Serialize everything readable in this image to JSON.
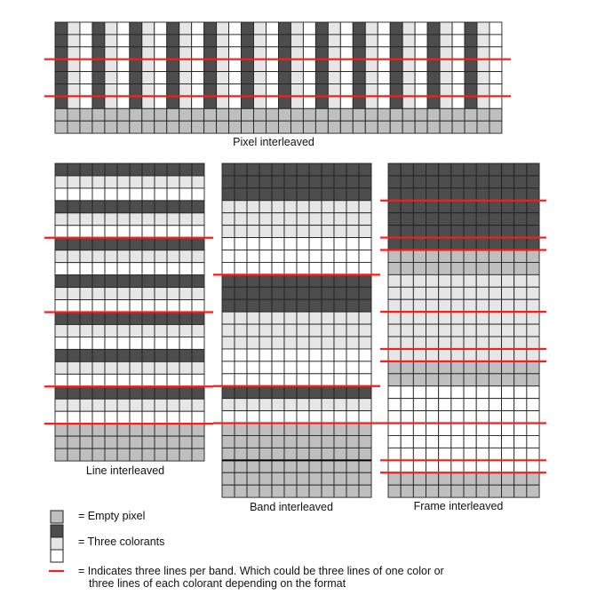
{
  "colors": {
    "dark": "#4d4d4d",
    "light": "#e6e6e6",
    "white": "#ffffff",
    "empty": "#bfbfbf",
    "red": "#ff1a1a",
    "grid": "#222222"
  },
  "diagrams": [
    {
      "id": "pixel",
      "caption": "Pixel interleaved",
      "cols": 36,
      "mode": "columns",
      "col_pattern": [
        "dark",
        "light",
        "white"
      ],
      "data_rows": 7,
      "empty_rows": 2,
      "red_after_rows": [
        3,
        6
      ]
    },
    {
      "id": "line",
      "caption": "Line interleaved",
      "cols": 12,
      "mode": "rows",
      "rows": [
        "dark",
        "light",
        "white",
        "dark",
        "light",
        "white",
        "dark",
        "light",
        "white",
        "dark",
        "light",
        "white",
        "dark",
        "light",
        "white",
        "dark",
        "light",
        "white",
        "dark",
        "light",
        "white",
        "empty",
        "empty",
        "empty"
      ],
      "red_after_rows": [
        6,
        12,
        18,
        21
      ]
    },
    {
      "id": "band",
      "caption": "Band interleaved",
      "cols": 12,
      "mode": "rows",
      "rows": [
        "dark",
        "dark",
        "dark",
        "light",
        "light",
        "light",
        "white",
        "white",
        "white",
        "dark",
        "dark",
        "dark",
        "light",
        "light",
        "light",
        "white",
        "white",
        "white",
        "dark",
        "light",
        "white",
        "empty",
        "empty",
        "empty",
        "empty",
        "empty",
        "empty"
      ],
      "red_after_rows": [
        9,
        18,
        21
      ],
      "heavy_after_rows": [
        24
      ]
    },
    {
      "id": "frame",
      "caption": "Frame interleaved",
      "cols": 12,
      "mode": "rows",
      "rows": [
        "dark",
        "dark",
        "dark",
        "dark",
        "dark",
        "dark",
        "dark",
        "empty",
        "empty",
        "light",
        "light",
        "light",
        "light",
        "light",
        "light",
        "light",
        "empty",
        "empty",
        "white",
        "white",
        "white",
        "white",
        "white",
        "white",
        "white",
        "empty",
        "empty"
      ],
      "red_after_rows": [
        3,
        6,
        7,
        12,
        15,
        16,
        21,
        24,
        25
      ]
    }
  ],
  "legend": {
    "empty": "= Empty pixel",
    "colorants": "= Three colorants",
    "red_line_1": "= Indicates three lines per band. Which could be three lines of one color or",
    "red_line_2": "three lines of each colorant depending on the format"
  }
}
